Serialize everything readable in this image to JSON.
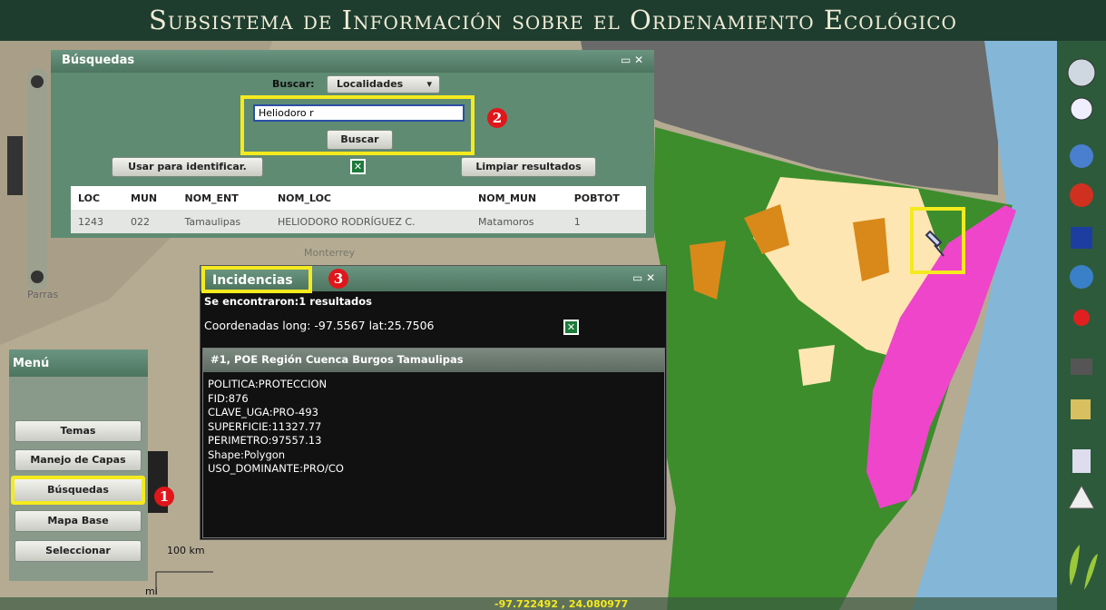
{
  "header": {
    "title": "Subsistema de Información sobre el Ordenamiento Ecológico"
  },
  "search_panel": {
    "title": "Búsquedas",
    "search_label": "Buscar:",
    "search_type": "Localidades",
    "input_value": "Heliodoro r",
    "search_button": "Buscar",
    "identify_button": "Usar para identificar.",
    "clear_button": "Limpiar resultados",
    "table": {
      "columns": [
        "LOC",
        "MUN",
        "NOM_ENT",
        "NOM_LOC",
        "NOM_MUN",
        "POBTOT"
      ],
      "rows": [
        [
          "1243",
          "022",
          "Tamaulipas",
          "HELIODORO RODRÍGUEZ C.",
          "Matamoros",
          "1"
        ]
      ]
    }
  },
  "annotations": [
    "1",
    "2",
    "3"
  ],
  "incidents_panel": {
    "title": "Incidencias",
    "summary": "Se encontraron:1 resultados",
    "coordinates": "Coordenadas long: -97.5567 lat:25.7506",
    "result_title": "#1, POE Región Cuenca Burgos Tamaulipas",
    "attributes": [
      "POLITICA:PROTECCION",
      "FID:876",
      "CLAVE_UGA:PRO-493",
      "SUPERFICIE:11327.77",
      "PERIMETRO:97557.13",
      "Shape:Polygon",
      "USO_DOMINANTE:PRO/CO"
    ]
  },
  "menu": {
    "title": "Menú",
    "buttons": [
      "Temas",
      "Manejo de Capas",
      "Búsquedas",
      "Mapa Base",
      "Seleccionar"
    ]
  },
  "map": {
    "labels": [
      "Parras",
      "Monterrey"
    ],
    "scale": [
      "100 km",
      "mi"
    ],
    "cursor_coordinates": "-97.722492 , 24.080977"
  }
}
